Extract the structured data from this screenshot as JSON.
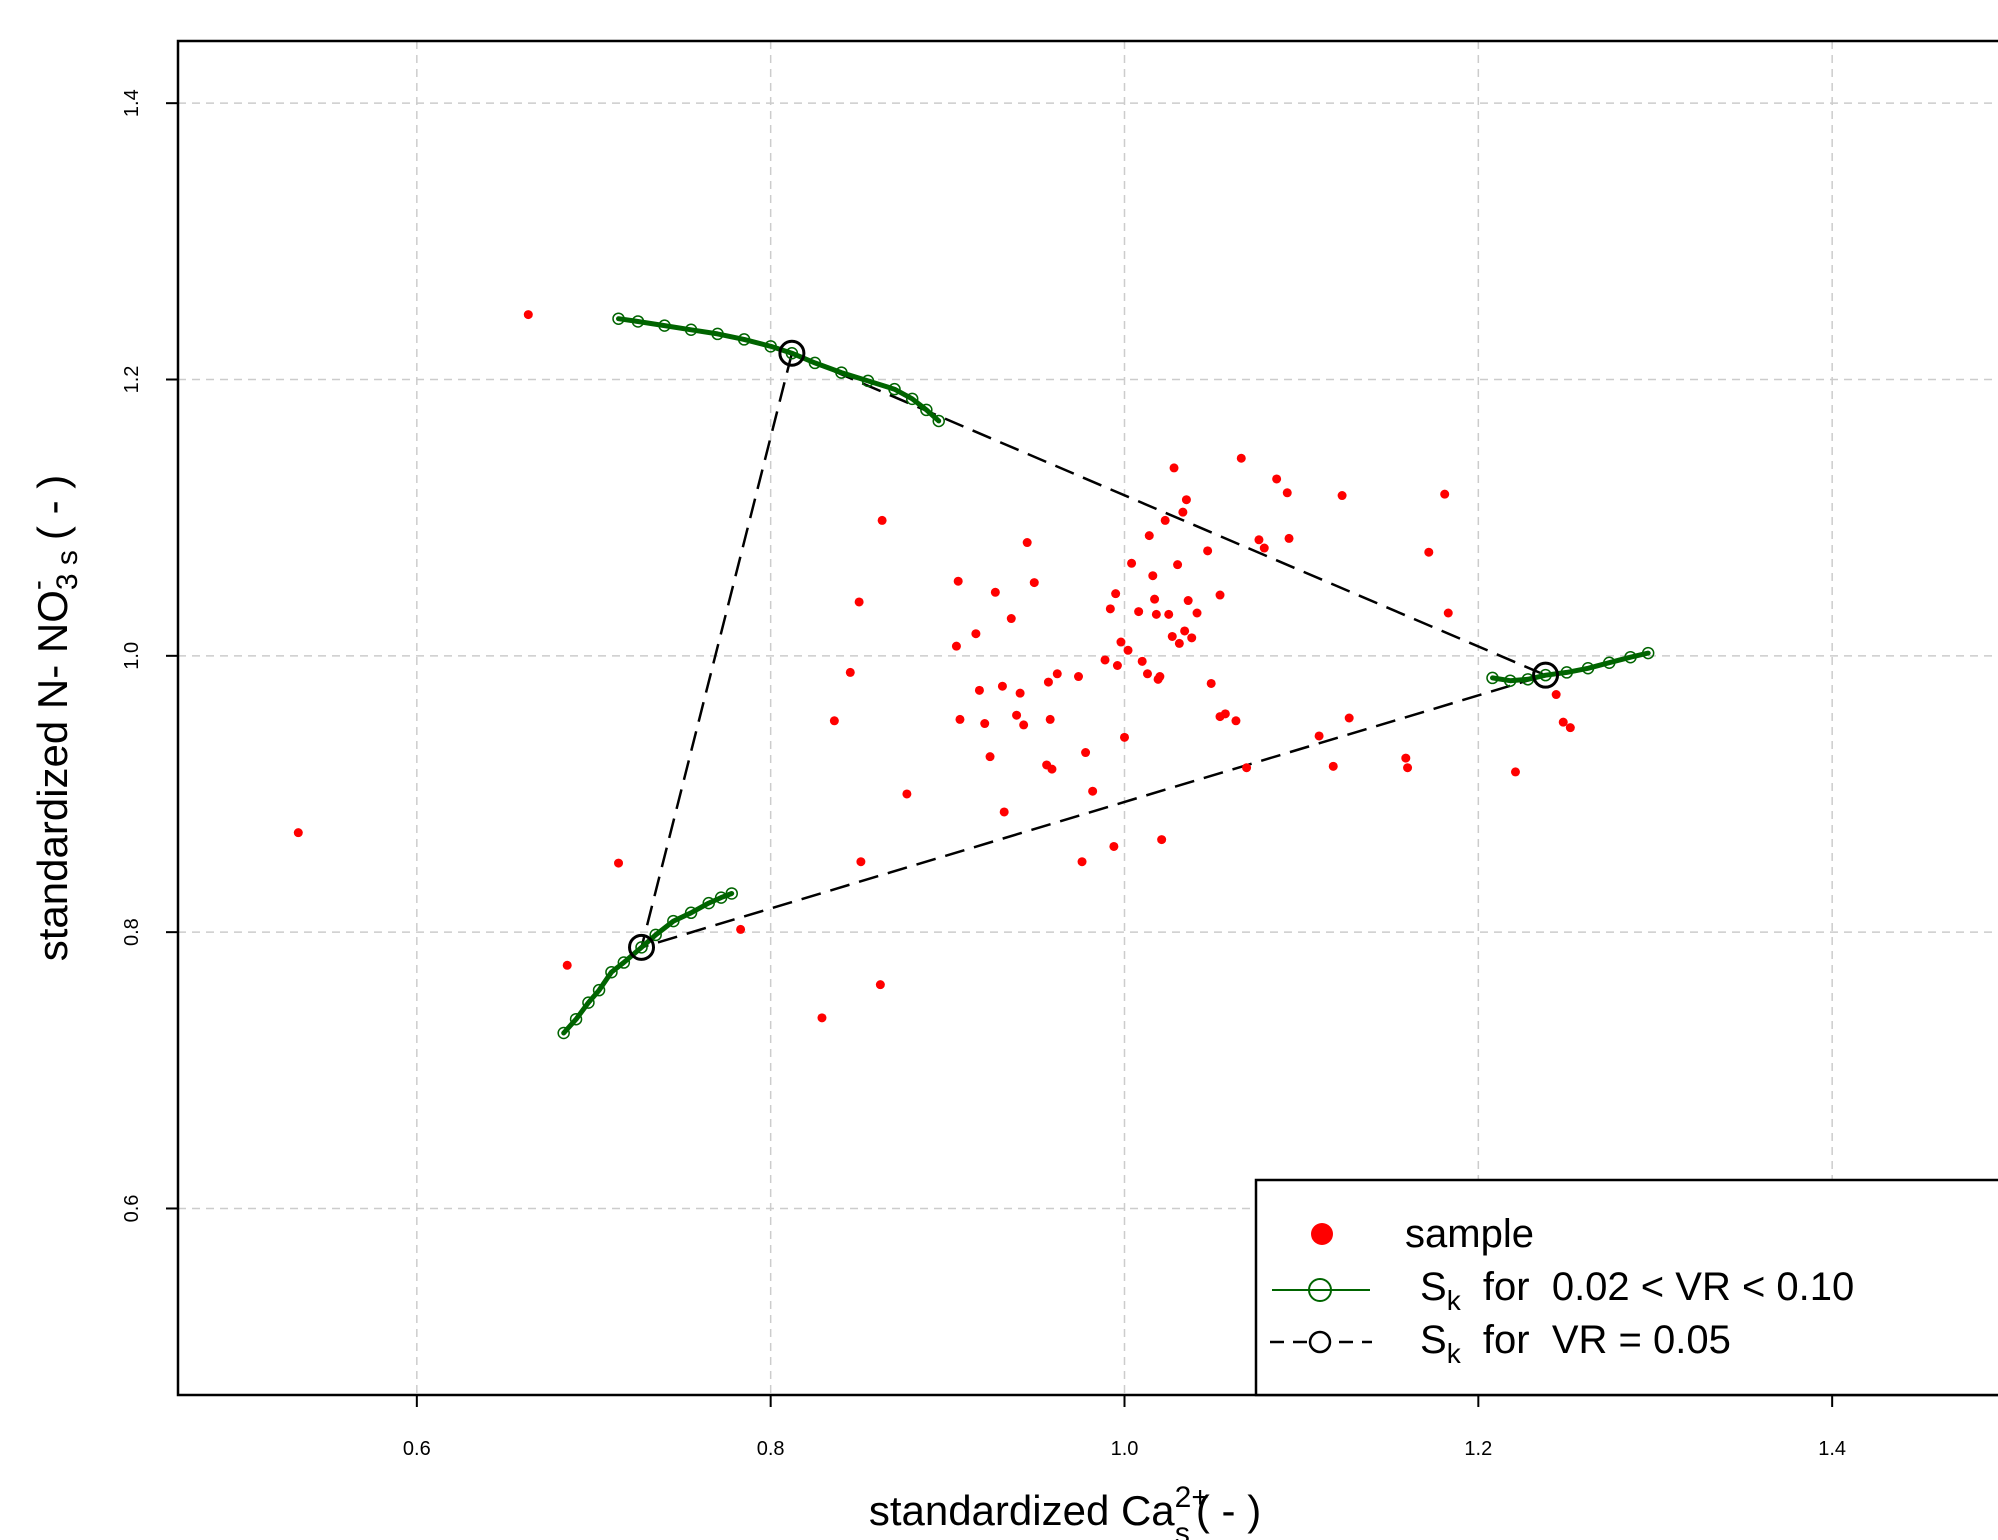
{
  "chart_data": {
    "type": "scatter",
    "xlabel": {
      "main": "standardized  Ca",
      "sup": "2+",
      "sub": "s",
      "unit": "( - )"
    },
    "ylabel": {
      "main": "standardized  N- NO",
      "sup": "-",
      "sub": "3 s",
      "unit": "( - )"
    },
    "xlim": [
      0.465,
      1.47
    ],
    "ylim": [
      0.465,
      1.445
    ],
    "xticks": [
      "0.6",
      "0.8",
      "1.0",
      "1.2",
      "1.4"
    ],
    "yticks": [
      "0.6",
      "0.8",
      "1.0",
      "1.2",
      "1.4"
    ],
    "grid": true,
    "legend": {
      "placement": "bottom-right",
      "items": [
        {
          "label": "sample"
        },
        {
          "label_main": "S",
          "label_sub": "k",
          "label_rest": "  for  0.02 < VR < 0.10"
        },
        {
          "label_main": "S",
          "label_sub": "k",
          "label_rest": "  for  VR = 0.05"
        }
      ]
    },
    "colors": {
      "sample": "#ff0000",
      "range": "#006400",
      "vr005": "#000000"
    },
    "series": [
      {
        "name": "sample",
        "points": [
          [
            0.533,
            0.872
          ],
          [
            0.663,
            1.247
          ],
          [
            0.714,
            0.85
          ],
          [
            0.685,
            0.776
          ],
          [
            0.783,
            0.802
          ],
          [
            0.829,
            0.738
          ],
          [
            0.836,
            0.953
          ],
          [
            0.845,
            0.988
          ],
          [
            0.85,
            1.039
          ],
          [
            0.851,
            0.851
          ],
          [
            0.862,
            0.762
          ],
          [
            0.863,
            1.098
          ],
          [
            0.877,
            0.9
          ],
          [
            0.905,
            1.007
          ],
          [
            0.906,
            1.054
          ],
          [
            0.907,
            0.954
          ],
          [
            0.916,
            1.016
          ],
          [
            0.918,
            0.975
          ],
          [
            0.921,
            0.951
          ],
          [
            0.924,
            0.927
          ],
          [
            0.927,
            1.046
          ],
          [
            0.931,
            0.978
          ],
          [
            0.932,
            0.887
          ],
          [
            0.936,
            1.027
          ],
          [
            0.939,
            0.957
          ],
          [
            0.941,
            0.973
          ],
          [
            0.943,
            0.95
          ],
          [
            0.945,
            1.082
          ],
          [
            0.949,
            1.053
          ],
          [
            0.956,
            0.921
          ],
          [
            0.957,
            0.981
          ],
          [
            0.958,
            0.954
          ],
          [
            0.959,
            0.918
          ],
          [
            0.962,
            0.987
          ],
          [
            0.974,
            0.985
          ],
          [
            0.976,
            0.851
          ],
          [
            0.978,
            0.93
          ],
          [
            0.982,
            0.902
          ],
          [
            0.989,
            0.997
          ],
          [
            0.992,
            1.034
          ],
          [
            0.994,
            0.862
          ],
          [
            0.995,
            1.045
          ],
          [
            0.996,
            0.993
          ],
          [
            0.998,
            1.01
          ],
          [
            1.0,
            0.941
          ],
          [
            1.002,
            1.004
          ],
          [
            1.004,
            1.067
          ],
          [
            1.008,
            1.032
          ],
          [
            1.01,
            0.996
          ],
          [
            1.013,
            0.987
          ],
          [
            1.014,
            1.087
          ],
          [
            1.016,
            1.058
          ],
          [
            1.017,
            1.041
          ],
          [
            1.018,
            1.03
          ],
          [
            1.019,
            0.983
          ],
          [
            1.02,
            0.985
          ],
          [
            1.021,
            0.867
          ],
          [
            1.023,
            1.098
          ],
          [
            1.025,
            1.03
          ],
          [
            1.027,
            1.014
          ],
          [
            1.028,
            1.136
          ],
          [
            1.03,
            1.066
          ],
          [
            1.031,
            1.009
          ],
          [
            1.033,
            1.104
          ],
          [
            1.034,
            1.018
          ],
          [
            1.035,
            1.113
          ],
          [
            1.036,
            1.04
          ],
          [
            1.038,
            1.013
          ],
          [
            1.041,
            1.031
          ],
          [
            1.047,
            1.076
          ],
          [
            1.049,
            0.98
          ],
          [
            1.054,
            1.044
          ],
          [
            1.054,
            0.956
          ],
          [
            1.057,
            0.958
          ],
          [
            1.063,
            0.953
          ],
          [
            1.066,
            1.143
          ],
          [
            1.069,
            0.919
          ],
          [
            1.076,
            1.084
          ],
          [
            1.079,
            1.078
          ],
          [
            1.086,
            1.128
          ],
          [
            1.092,
            1.118
          ],
          [
            1.093,
            1.085
          ],
          [
            1.11,
            0.942
          ],
          [
            1.118,
            0.92
          ],
          [
            1.123,
            1.116
          ],
          [
            1.127,
            0.955
          ],
          [
            1.159,
            0.926
          ],
          [
            1.16,
            0.919
          ],
          [
            1.172,
            1.075
          ],
          [
            1.181,
            1.117
          ],
          [
            1.183,
            1.031
          ],
          [
            1.221,
            0.916
          ],
          [
            1.244,
            0.972
          ],
          [
            1.248,
            0.952
          ],
          [
            1.252,
            0.948
          ]
        ]
      },
      {
        "name": "S_k for 0.02 < VR < 0.10",
        "endmember_1": [
          [
            0.714,
            1.244
          ],
          [
            0.725,
            1.242
          ],
          [
            0.74,
            1.239
          ],
          [
            0.755,
            1.236
          ],
          [
            0.77,
            1.233
          ],
          [
            0.785,
            1.229
          ],
          [
            0.8,
            1.224
          ],
          [
            0.812,
            1.219
          ],
          [
            0.825,
            1.212
          ],
          [
            0.84,
            1.205
          ],
          [
            0.855,
            1.199
          ],
          [
            0.87,
            1.193
          ],
          [
            0.88,
            1.186
          ],
          [
            0.888,
            1.178
          ],
          [
            0.895,
            1.17
          ]
        ],
        "endmember_2": [
          [
            0.683,
            0.727
          ],
          [
            0.69,
            0.737
          ],
          [
            0.697,
            0.749
          ],
          [
            0.703,
            0.758
          ],
          [
            0.71,
            0.771
          ],
          [
            0.717,
            0.778
          ],
          [
            0.727,
            0.789
          ],
          [
            0.735,
            0.798
          ],
          [
            0.745,
            0.808
          ],
          [
            0.755,
            0.814
          ],
          [
            0.765,
            0.821
          ],
          [
            0.772,
            0.825
          ],
          [
            0.778,
            0.828
          ]
        ],
        "endmember_3": [
          [
            1.208,
            0.984
          ],
          [
            1.218,
            0.982
          ],
          [
            1.228,
            0.983
          ],
          [
            1.238,
            0.986
          ],
          [
            1.25,
            0.988
          ],
          [
            1.262,
            0.991
          ],
          [
            1.274,
            0.995
          ],
          [
            1.286,
            0.999
          ],
          [
            1.296,
            1.002
          ]
        ]
      },
      {
        "name": "S_k for VR = 0.05",
        "points": [
          [
            0.812,
            1.219
          ],
          [
            0.727,
            0.789
          ],
          [
            1.238,
            0.986
          ]
        ]
      }
    ]
  }
}
